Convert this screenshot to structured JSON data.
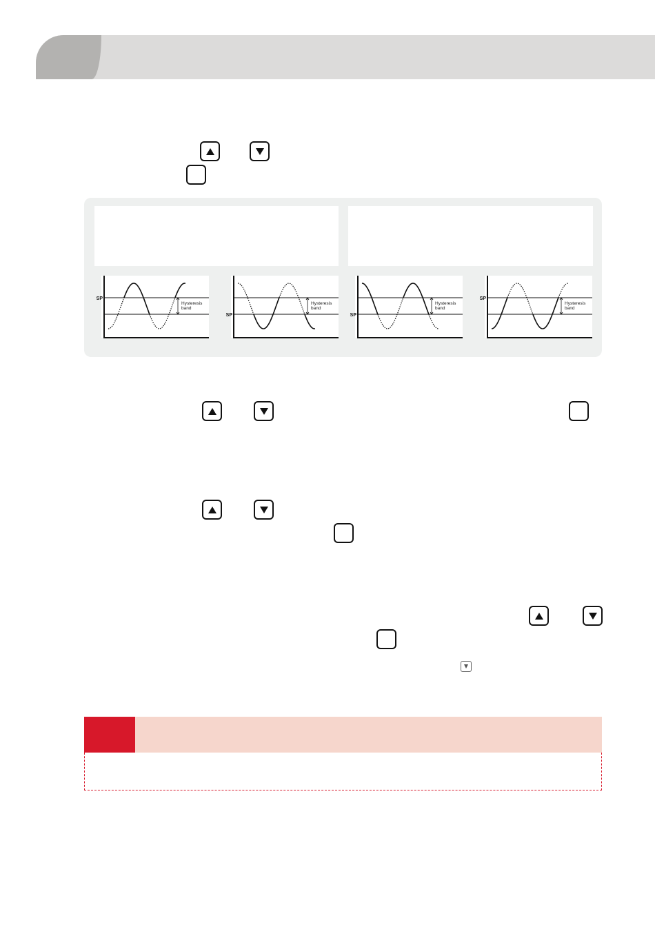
{
  "colors": {
    "header_bg": "#dcdbda",
    "header_tab": "#b3b2b0",
    "panel_bg": "#eef0ef",
    "warning_red": "#d7182a",
    "warning_bg": "#f6d6cc"
  },
  "icons": {
    "up": "up-arrow-key-icon",
    "down": "down-arrow-key-icon",
    "blank": "set-key-icon"
  },
  "chart_data": [
    {
      "type": "line",
      "sp_label": "SP",
      "sp_line": "upper",
      "band_label_1": "Hysteresis",
      "band_label_2": "band",
      "start": "trough",
      "mode": "high"
    },
    {
      "type": "line",
      "sp_label": "SP",
      "sp_line": "lower",
      "band_label_1": "Hysteresis",
      "band_label_2": "band",
      "start": "peak",
      "mode": "low"
    },
    {
      "type": "line",
      "sp_label": "SP",
      "sp_line": "lower",
      "band_label_1": "Hysteresis",
      "band_label_2": "band",
      "start": "peak",
      "mode": "high"
    },
    {
      "type": "line",
      "sp_label": "SP",
      "sp_line": "upper",
      "band_label_1": "Hysteresis",
      "band_label_2": "band",
      "start": "trough",
      "mode": "low"
    }
  ]
}
